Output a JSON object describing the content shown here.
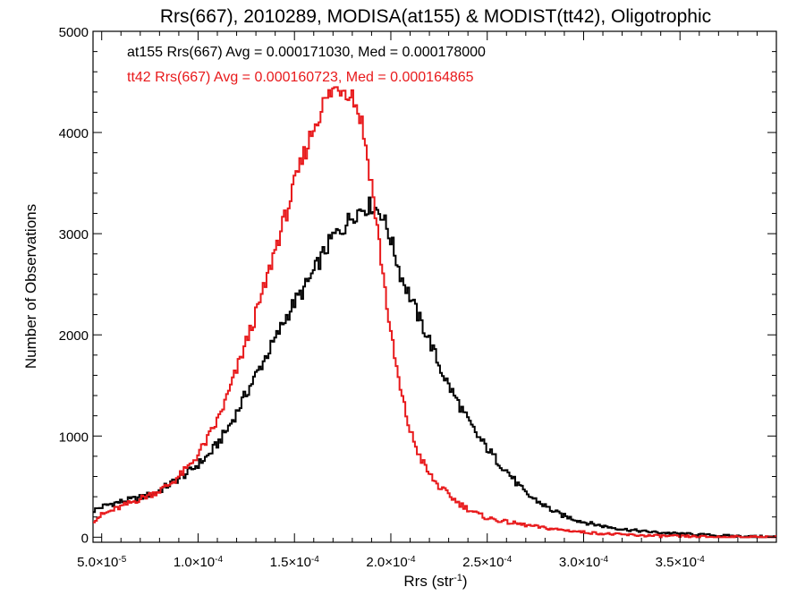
{
  "chart_data": {
    "type": "histogram",
    "title": "Rrs(667), 2010289, MODISA(at155) & MODIST(tt42), Oligotrophic",
    "xlabel": "Rrs (str",
    "xlabel_sup": "-1",
    "xlabel_end": ")",
    "ylabel": "Number of Observations",
    "xlim": [
      4.55e-05,
      0.0004
    ],
    "ylim": [
      -50,
      5000
    ],
    "x_ticks": [
      {
        "value": 5e-05,
        "mant": "5.0",
        "exp": "-5"
      },
      {
        "value": 0.0001,
        "mant": "1.0",
        "exp": "-4"
      },
      {
        "value": 0.00015,
        "mant": "1.5",
        "exp": "-4"
      },
      {
        "value": 0.0002,
        "mant": "2.0",
        "exp": "-4"
      },
      {
        "value": 0.00025,
        "mant": "2.5",
        "exp": "-4"
      },
      {
        "value": 0.0003,
        "mant": "3.0",
        "exp": "-4"
      },
      {
        "value": 0.00035,
        "mant": "3.5",
        "exp": "-4"
      }
    ],
    "y_ticks": [
      0,
      1000,
      2000,
      3000,
      4000,
      5000
    ],
    "bin_width": 1e-06,
    "annotations": [
      {
        "text": "at155 Rrs(667) Avg = 0.000171030, Med = 0.000178000",
        "color": "#000000"
      },
      {
        "text": "tt42 Rrs(667) Avg = 0.000160723, Med = 0.000164865",
        "color": "#e8191b"
      }
    ],
    "series": [
      {
        "color": "#000000",
        "points": [
          [
            4.55e-05,
            260
          ],
          [
            5e-05,
            300
          ],
          [
            5.5e-05,
            330
          ],
          [
            6e-05,
            350
          ],
          [
            6.5e-05,
            370
          ],
          [
            7e-05,
            390
          ],
          [
            7.5e-05,
            420
          ],
          [
            8e-05,
            460
          ],
          [
            8.5e-05,
            520
          ],
          [
            9e-05,
            580
          ],
          [
            9.5e-05,
            640
          ],
          [
            0.0001,
            720
          ],
          [
            0.000105,
            800
          ],
          [
            0.00011,
            920
          ],
          [
            0.000115,
            1060
          ],
          [
            0.00012,
            1230
          ],
          [
            0.000125,
            1420
          ],
          [
            0.00013,
            1600
          ],
          [
            0.000135,
            1780
          ],
          [
            0.00014,
            1950
          ],
          [
            0.000145,
            2150
          ],
          [
            0.00015,
            2320
          ],
          [
            0.000155,
            2450
          ],
          [
            0.00016,
            2620
          ],
          [
            0.000165,
            2800
          ],
          [
            0.00017,
            2970
          ],
          [
            0.000175,
            3050
          ],
          [
            0.00018,
            3180
          ],
          [
            0.000185,
            3250
          ],
          [
            0.00019,
            3280
          ],
          [
            0.000195,
            3210
          ],
          [
            0.0002,
            2950
          ],
          [
            0.000205,
            2600
          ],
          [
            0.00021,
            2380
          ],
          [
            0.000215,
            2150
          ],
          [
            0.00022,
            1950
          ],
          [
            0.000225,
            1700
          ],
          [
            0.00023,
            1500
          ],
          [
            0.000235,
            1330
          ],
          [
            0.00024,
            1150
          ],
          [
            0.000245,
            1000
          ],
          [
            0.00025,
            880
          ],
          [
            0.000255,
            760
          ],
          [
            0.00026,
            660
          ],
          [
            0.000265,
            540
          ],
          [
            0.00027,
            430
          ],
          [
            0.000275,
            370
          ],
          [
            0.00028,
            310
          ],
          [
            0.000285,
            250
          ],
          [
            0.00029,
            210
          ],
          [
            0.000295,
            180
          ],
          [
            0.0003,
            150
          ],
          [
            0.00031,
            110
          ],
          [
            0.00032,
            80
          ],
          [
            0.00033,
            60
          ],
          [
            0.00034,
            45
          ],
          [
            0.00035,
            35
          ],
          [
            0.00036,
            25
          ],
          [
            0.00037,
            15
          ],
          [
            0.00038,
            10
          ],
          [
            0.00039,
            5
          ],
          [
            0.0004,
            3
          ]
        ]
      },
      {
        "color": "#e8191b",
        "points": [
          [
            4.55e-05,
            160
          ],
          [
            5e-05,
            220
          ],
          [
            5.5e-05,
            260
          ],
          [
            6e-05,
            300
          ],
          [
            6.5e-05,
            340
          ],
          [
            7e-05,
            380
          ],
          [
            7.5e-05,
            420
          ],
          [
            8e-05,
            460
          ],
          [
            8.5e-05,
            520
          ],
          [
            9e-05,
            600
          ],
          [
            9.5e-05,
            690
          ],
          [
            0.0001,
            820
          ],
          [
            0.000105,
            970
          ],
          [
            0.00011,
            1150
          ],
          [
            0.000115,
            1380
          ],
          [
            0.00012,
            1650
          ],
          [
            0.000125,
            1930
          ],
          [
            0.00013,
            2200
          ],
          [
            0.000135,
            2500
          ],
          [
            0.00014,
            2850
          ],
          [
            0.000145,
            3150
          ],
          [
            0.00015,
            3480
          ],
          [
            0.000155,
            3780
          ],
          [
            0.00016,
            4050
          ],
          [
            0.000165,
            4280
          ],
          [
            0.00017,
            4420
          ],
          [
            0.000175,
            4450
          ],
          [
            0.00018,
            4380
          ],
          [
            0.000185,
            4100
          ],
          [
            0.00019,
            3500
          ],
          [
            0.000195,
            2750
          ],
          [
            0.0002,
            2000
          ],
          [
            0.000205,
            1450
          ],
          [
            0.00021,
            1050
          ],
          [
            0.000215,
            800
          ],
          [
            0.00022,
            620
          ],
          [
            0.000225,
            500
          ],
          [
            0.00023,
            420
          ],
          [
            0.000235,
            340
          ],
          [
            0.00024,
            280
          ],
          [
            0.000245,
            230
          ],
          [
            0.00025,
            190
          ],
          [
            0.00026,
            150
          ],
          [
            0.00027,
            120
          ],
          [
            0.00028,
            90
          ],
          [
            0.00029,
            70
          ],
          [
            0.0003,
            50
          ],
          [
            0.00031,
            35
          ],
          [
            0.00032,
            25
          ],
          [
            0.00033,
            18
          ],
          [
            0.00034,
            12
          ],
          [
            0.00035,
            8
          ],
          [
            0.00036,
            5
          ],
          [
            0.00037,
            3
          ],
          [
            0.00038,
            2
          ],
          [
            0.00039,
            1
          ],
          [
            0.0004,
            0
          ]
        ]
      }
    ]
  }
}
